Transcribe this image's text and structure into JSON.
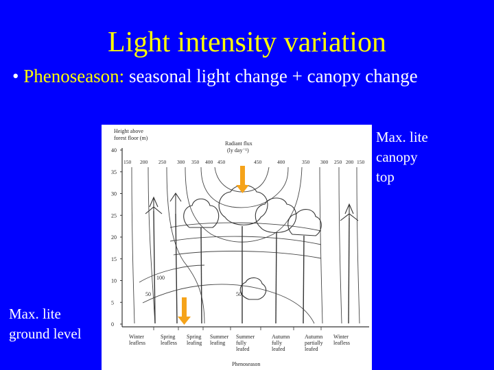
{
  "slide": {
    "title": "Light intensity variation",
    "bullet_symbol": "•",
    "bullet_term": "Phenoseason:",
    "bullet_rest": " seasonal light change + canopy change",
    "label_top": [
      "Max. lite",
      "canopy",
      "top"
    ],
    "label_bottom": [
      "Max. lite",
      "ground level"
    ]
  },
  "figure": {
    "y_axis_title": [
      "Height above",
      "forest floor (m)"
    ],
    "y_ticks": [
      "40",
      "35",
      "30",
      "25",
      "20",
      "15",
      "10",
      "5",
      "0"
    ],
    "flux_title": [
      "Radiant flux",
      "(ly day⁻¹)"
    ],
    "flux_values": [
      "150",
      "200",
      "250",
      "300",
      "350",
      "400",
      "450",
      "450",
      "400",
      "350",
      "300",
      "250",
      "200",
      "150"
    ],
    "inner_values": [
      "100",
      "50",
      "50"
    ],
    "x_axis_title": "Phenoseason",
    "seasons": [
      [
        "Winter",
        "leafless"
      ],
      [
        "Spring",
        "leafless"
      ],
      [
        "Spring",
        "leafing"
      ],
      [
        "Summer",
        "leafing"
      ],
      [
        "Summer",
        "fully",
        "leafed"
      ],
      [
        "Autumn",
        "fully",
        "leafed"
      ],
      [
        "Autumn",
        "partially",
        "leafed"
      ],
      [
        "Winter",
        "leafless"
      ]
    ],
    "colors": {
      "arrow": "#f5a31a",
      "paper": "#ffffff",
      "ink": "#333333"
    }
  }
}
